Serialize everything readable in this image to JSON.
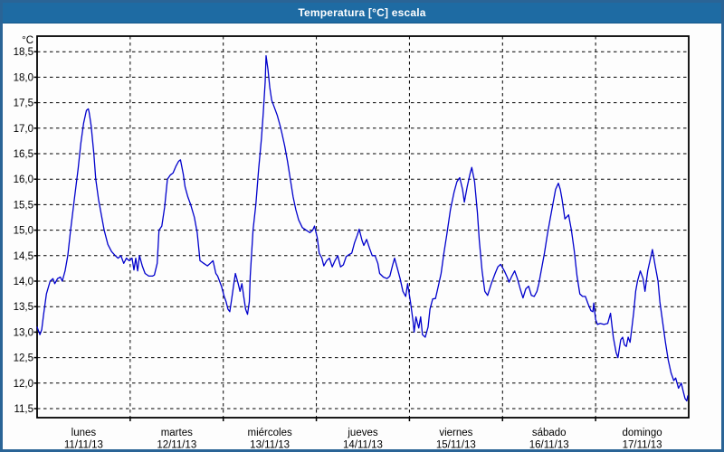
{
  "window": {
    "title": "Temperatura [°C] escala"
  },
  "colors": {
    "titlebar_bg": "#1e6ba3",
    "titlebar_text": "#ffffff",
    "frame_border": "#2a6496",
    "plot_border": "#000000",
    "gridline": "#000000",
    "line": "#0000cc",
    "label_text": "#000000",
    "background": "#fdfdfd"
  },
  "y_axis": {
    "unit_label": "°C",
    "min": 11.5,
    "max": 18.5,
    "step": 0.5,
    "tick_labels": [
      "18,5",
      "18,0",
      "17,5",
      "17,0",
      "16,5",
      "16,0",
      "15,5",
      "15,0",
      "14,5",
      "14,0",
      "13,5",
      "13,0",
      "12,5",
      "12,0",
      "11,5"
    ]
  },
  "x_axis": {
    "days": [
      {
        "name": "lunes",
        "date": "11/11/13"
      },
      {
        "name": "martes",
        "date": "12/11/13"
      },
      {
        "name": "miércoles",
        "date": "13/11/13"
      },
      {
        "name": "jueves",
        "date": "14/11/13"
      },
      {
        "name": "viernes",
        "date": "15/11/13"
      },
      {
        "name": "sábado",
        "date": "16/11/13"
      },
      {
        "name": "domingo",
        "date": "17/11/13"
      }
    ]
  },
  "chart_data": {
    "type": "line",
    "title": "Temperatura [°C] escala",
    "xlabel": "",
    "ylabel": "°C",
    "ylim": [
      11.5,
      18.5
    ],
    "grid": "dashed",
    "legend": "none",
    "categories": [
      "lunes 11/11/13",
      "martes 12/11/13",
      "miércoles 13/11/13",
      "jueves 14/11/13",
      "viernes 15/11/13",
      "sábado 16/11/13",
      "domingo 17/11/13"
    ],
    "x_unit": "days_since_start",
    "series": [
      {
        "name": "Temperatura",
        "color": "#0000cc",
        "points": [
          [
            0,
            13.1
          ],
          [
            0.03,
            12.95
          ],
          [
            0.05,
            13.05
          ],
          [
            0.07,
            13.35
          ],
          [
            0.1,
            13.75
          ],
          [
            0.14,
            14.0
          ],
          [
            0.17,
            14.05
          ],
          [
            0.19,
            13.95
          ],
          [
            0.22,
            14.05
          ],
          [
            0.25,
            14.08
          ],
          [
            0.27,
            14.0
          ],
          [
            0.3,
            14.2
          ],
          [
            0.33,
            14.5
          ],
          [
            0.36,
            15.0
          ],
          [
            0.4,
            15.6
          ],
          [
            0.44,
            16.2
          ],
          [
            0.47,
            16.7
          ],
          [
            0.5,
            17.1
          ],
          [
            0.53,
            17.35
          ],
          [
            0.55,
            17.38
          ],
          [
            0.56,
            17.3
          ],
          [
            0.58,
            17.05
          ],
          [
            0.61,
            16.5
          ],
          [
            0.63,
            16.0
          ],
          [
            0.66,
            15.6
          ],
          [
            0.69,
            15.3
          ],
          [
            0.72,
            15.0
          ],
          [
            0.76,
            14.72
          ],
          [
            0.8,
            14.58
          ],
          [
            0.84,
            14.5
          ],
          [
            0.87,
            14.45
          ],
          [
            0.9,
            14.5
          ],
          [
            0.93,
            14.35
          ],
          [
            0.96,
            14.45
          ],
          [
            0.99,
            14.4
          ],
          [
            1.02,
            14.45
          ],
          [
            1.04,
            14.22
          ],
          [
            1.06,
            14.45
          ],
          [
            1.08,
            14.2
          ],
          [
            1.1,
            14.5
          ],
          [
            1.13,
            14.3
          ],
          [
            1.16,
            14.15
          ],
          [
            1.2,
            14.1
          ],
          [
            1.24,
            14.1
          ],
          [
            1.26,
            14.12
          ],
          [
            1.29,
            14.35
          ],
          [
            1.31,
            15.0
          ],
          [
            1.34,
            15.08
          ],
          [
            1.37,
            15.45
          ],
          [
            1.4,
            16.0
          ],
          [
            1.43,
            16.08
          ],
          [
            1.46,
            16.12
          ],
          [
            1.49,
            16.25
          ],
          [
            1.52,
            16.35
          ],
          [
            1.54,
            16.38
          ],
          [
            1.57,
            16.1
          ],
          [
            1.59,
            15.85
          ],
          [
            1.62,
            15.65
          ],
          [
            1.65,
            15.5
          ],
          [
            1.69,
            15.25
          ],
          [
            1.72,
            14.95
          ],
          [
            1.75,
            14.4
          ],
          [
            1.79,
            14.35
          ],
          [
            1.83,
            14.3
          ],
          [
            1.86,
            14.35
          ],
          [
            1.89,
            14.4
          ],
          [
            1.92,
            14.15
          ],
          [
            1.94,
            14.1
          ],
          [
            1.96,
            14.0
          ],
          [
            1.98,
            13.9
          ],
          [
            2.01,
            13.7
          ],
          [
            2.03,
            13.6
          ],
          [
            2.05,
            13.45
          ],
          [
            2.07,
            13.4
          ],
          [
            2.09,
            13.65
          ],
          [
            2.11,
            13.9
          ],
          [
            2.13,
            14.15
          ],
          [
            2.16,
            13.95
          ],
          [
            2.18,
            13.8
          ],
          [
            2.2,
            13.95
          ],
          [
            2.22,
            13.7
          ],
          [
            2.24,
            13.45
          ],
          [
            2.26,
            13.35
          ],
          [
            2.28,
            13.6
          ],
          [
            2.29,
            14.1
          ],
          [
            2.32,
            15.0
          ],
          [
            2.35,
            15.5
          ],
          [
            2.38,
            16.2
          ],
          [
            2.41,
            16.8
          ],
          [
            2.43,
            17.3
          ],
          [
            2.45,
            17.9
          ],
          [
            2.46,
            18.42
          ],
          [
            2.48,
            18.15
          ],
          [
            2.5,
            17.8
          ],
          [
            2.52,
            17.55
          ],
          [
            2.55,
            17.4
          ],
          [
            2.58,
            17.25
          ],
          [
            2.61,
            17.05
          ],
          [
            2.63,
            16.9
          ],
          [
            2.66,
            16.65
          ],
          [
            2.69,
            16.35
          ],
          [
            2.72,
            16.0
          ],
          [
            2.75,
            15.65
          ],
          [
            2.78,
            15.4
          ],
          [
            2.81,
            15.2
          ],
          [
            2.85,
            15.05
          ],
          [
            2.89,
            15.0
          ],
          [
            2.93,
            14.95
          ],
          [
            2.96,
            15.0
          ],
          [
            2.98,
            15.08
          ],
          [
            3.01,
            14.85
          ],
          [
            3.03,
            14.55
          ],
          [
            3.06,
            14.45
          ],
          [
            3.08,
            14.3
          ],
          [
            3.11,
            14.4
          ],
          [
            3.14,
            14.45
          ],
          [
            3.17,
            14.28
          ],
          [
            3.2,
            14.4
          ],
          [
            3.23,
            14.5
          ],
          [
            3.26,
            14.28
          ],
          [
            3.29,
            14.32
          ],
          [
            3.32,
            14.48
          ],
          [
            3.35,
            14.52
          ],
          [
            3.38,
            14.55
          ],
          [
            3.41,
            14.75
          ],
          [
            3.44,
            14.9
          ],
          [
            3.46,
            15.02
          ],
          [
            3.49,
            14.8
          ],
          [
            3.51,
            14.7
          ],
          [
            3.54,
            14.82
          ],
          [
            3.57,
            14.65
          ],
          [
            3.6,
            14.5
          ],
          [
            3.63,
            14.5
          ],
          [
            3.66,
            14.35
          ],
          [
            3.68,
            14.15
          ],
          [
            3.72,
            14.08
          ],
          [
            3.76,
            14.05
          ],
          [
            3.79,
            14.1
          ],
          [
            3.82,
            14.32
          ],
          [
            3.84,
            14.45
          ],
          [
            3.87,
            14.25
          ],
          [
            3.9,
            14.05
          ],
          [
            3.93,
            13.8
          ],
          [
            3.96,
            13.7
          ],
          [
            3.98,
            13.95
          ],
          [
            4.01,
            13.6
          ],
          [
            4.04,
            13.2
          ],
          [
            4.05,
            13.0
          ],
          [
            4.07,
            13.3
          ],
          [
            4.1,
            13.08
          ],
          [
            4.12,
            13.3
          ],
          [
            4.14,
            12.95
          ],
          [
            4.17,
            12.9
          ],
          [
            4.2,
            13.1
          ],
          [
            4.22,
            13.45
          ],
          [
            4.25,
            13.65
          ],
          [
            4.28,
            13.66
          ],
          [
            4.31,
            13.9
          ],
          [
            4.34,
            14.15
          ],
          [
            4.37,
            14.55
          ],
          [
            4.4,
            14.9
          ],
          [
            4.44,
            15.4
          ],
          [
            4.48,
            15.75
          ],
          [
            4.51,
            15.95
          ],
          [
            4.54,
            16.03
          ],
          [
            4.57,
            15.8
          ],
          [
            4.59,
            15.55
          ],
          [
            4.62,
            15.85
          ],
          [
            4.65,
            16.1
          ],
          [
            4.67,
            16.23
          ],
          [
            4.7,
            15.95
          ],
          [
            4.73,
            15.35
          ],
          [
            4.75,
            14.8
          ],
          [
            4.78,
            14.2
          ],
          [
            4.81,
            13.8
          ],
          [
            4.84,
            13.72
          ],
          [
            4.88,
            13.95
          ],
          [
            4.92,
            14.15
          ],
          [
            4.95,
            14.28
          ],
          [
            4.98,
            14.33
          ],
          [
            5.02,
            14.2
          ],
          [
            5.05,
            14.08
          ],
          [
            5.07,
            13.98
          ],
          [
            5.1,
            14.1
          ],
          [
            5.13,
            14.2
          ],
          [
            5.16,
            14.05
          ],
          [
            5.19,
            13.85
          ],
          [
            5.22,
            13.67
          ],
          [
            5.25,
            13.85
          ],
          [
            5.28,
            13.9
          ],
          [
            5.31,
            13.72
          ],
          [
            5.34,
            13.7
          ],
          [
            5.37,
            13.8
          ],
          [
            5.39,
            13.95
          ],
          [
            5.42,
            14.25
          ],
          [
            5.45,
            14.55
          ],
          [
            5.48,
            14.9
          ],
          [
            5.51,
            15.2
          ],
          [
            5.54,
            15.5
          ],
          [
            5.57,
            15.8
          ],
          [
            5.6,
            15.92
          ],
          [
            5.62,
            15.8
          ],
          [
            5.64,
            15.6
          ],
          [
            5.67,
            15.22
          ],
          [
            5.7,
            15.28
          ],
          [
            5.71,
            15.3
          ],
          [
            5.74,
            15.0
          ],
          [
            5.77,
            14.6
          ],
          [
            5.8,
            14.1
          ],
          [
            5.83,
            13.75
          ],
          [
            5.86,
            13.7
          ],
          [
            5.89,
            13.7
          ],
          [
            5.92,
            13.55
          ],
          [
            5.95,
            13.42
          ],
          [
            5.97,
            13.4
          ],
          [
            5.98,
            13.57
          ],
          [
            6.0,
            13.25
          ],
          [
            6.02,
            13.15
          ],
          [
            6.05,
            13.17
          ],
          [
            6.09,
            13.15
          ],
          [
            6.13,
            13.17
          ],
          [
            6.16,
            13.37
          ],
          [
            6.19,
            12.9
          ],
          [
            6.22,
            12.6
          ],
          [
            6.24,
            12.5
          ],
          [
            6.27,
            12.85
          ],
          [
            6.29,
            12.9
          ],
          [
            6.31,
            12.75
          ],
          [
            6.33,
            12.72
          ],
          [
            6.35,
            12.9
          ],
          [
            6.37,
            12.8
          ],
          [
            6.39,
            13.1
          ],
          [
            6.41,
            13.4
          ],
          [
            6.43,
            13.8
          ],
          [
            6.45,
            14.0
          ],
          [
            6.48,
            14.2
          ],
          [
            6.51,
            14.05
          ],
          [
            6.53,
            13.8
          ],
          [
            6.56,
            14.2
          ],
          [
            6.59,
            14.45
          ],
          [
            6.61,
            14.62
          ],
          [
            6.64,
            14.3
          ],
          [
            6.67,
            14.0
          ],
          [
            6.69,
            13.6
          ],
          [
            6.72,
            13.2
          ],
          [
            6.75,
            12.8
          ],
          [
            6.78,
            12.45
          ],
          [
            6.81,
            12.2
          ],
          [
            6.84,
            12.05
          ],
          [
            6.86,
            12.1
          ],
          [
            6.89,
            11.9
          ],
          [
            6.92,
            12.0
          ],
          [
            6.94,
            11.85
          ],
          [
            6.96,
            11.7
          ],
          [
            6.98,
            11.65
          ],
          [
            6.99,
            11.75
          ]
        ]
      }
    ]
  }
}
